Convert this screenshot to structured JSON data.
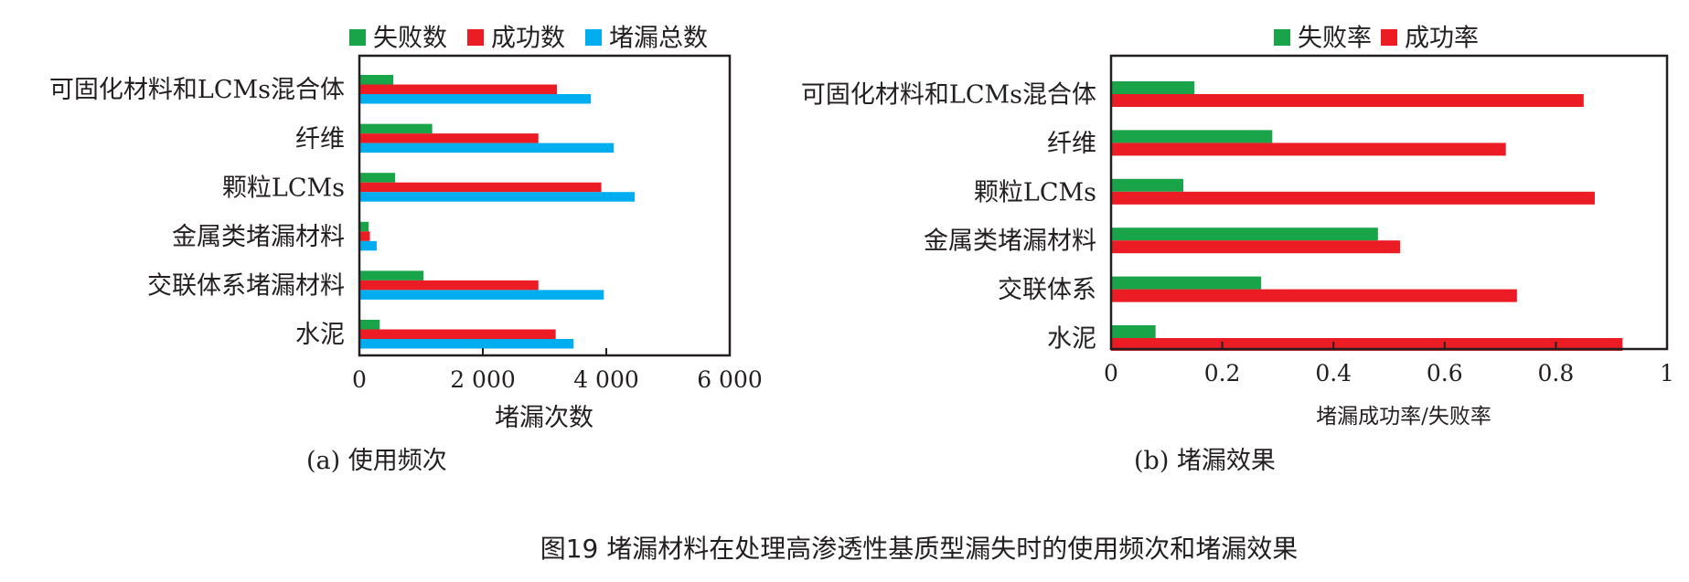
{
  "colors": {
    "fail": "#1aa44a",
    "success": "#ec1c24",
    "total": "#00aeef",
    "axis": "#231f20"
  },
  "figure_caption": "图19  堵漏材料在处理高渗透性基质型漏失时的使用频次和堵漏效果",
  "chart_data": [
    {
      "id": "usage",
      "type": "bar",
      "orientation": "horizontal",
      "subcaption": "(a) 使用频次",
      "xlabel": "堵漏次数",
      "ylabel": "",
      "xlim": [
        0,
        6000
      ],
      "xticks": [
        0,
        2000,
        4000,
        6000
      ],
      "xtick_labels": [
        "0",
        "2 000",
        "4 000",
        "6 000"
      ],
      "legend_position": "top",
      "grid": false,
      "categories": [
        "可固化材料和LCMs混合体",
        "纤维",
        "颗粒LCMs",
        "金属类堵漏材料",
        "交联体系堵漏材料",
        "水泥"
      ],
      "series": [
        {
          "key": "fail",
          "name": "失败数",
          "values": [
            550,
            1180,
            580,
            150,
            1040,
            330
          ]
        },
        {
          "key": "success",
          "name": "成功数",
          "values": [
            3200,
            2900,
            3920,
            170,
            2900,
            3180
          ]
        },
        {
          "key": "total",
          "name": "堵漏总数",
          "values": [
            3750,
            4120,
            4460,
            280,
            3960,
            3470
          ]
        }
      ]
    },
    {
      "id": "effect",
      "type": "bar",
      "orientation": "horizontal",
      "subcaption": "(b) 堵漏效果",
      "xlabel": "堵漏成功率/失败率",
      "ylabel": "",
      "xlim": [
        0,
        1
      ],
      "xticks": [
        0,
        0.2,
        0.4,
        0.6,
        0.8,
        1
      ],
      "xtick_labels": [
        "0",
        "0.2",
        "0.4",
        "0.6",
        "0.8",
        "1"
      ],
      "legend_position": "top",
      "grid": false,
      "categories": [
        "可固化材料和LCMs混合体",
        "纤维",
        "颗粒LCMs",
        "金属类堵漏材料",
        "交联体系",
        "水泥"
      ],
      "series": [
        {
          "key": "fail",
          "name": "失败率",
          "values": [
            0.15,
            0.29,
            0.13,
            0.48,
            0.27,
            0.08
          ]
        },
        {
          "key": "success",
          "name": "成功率",
          "values": [
            0.85,
            0.71,
            0.87,
            0.52,
            0.73,
            0.92
          ]
        }
      ]
    }
  ]
}
